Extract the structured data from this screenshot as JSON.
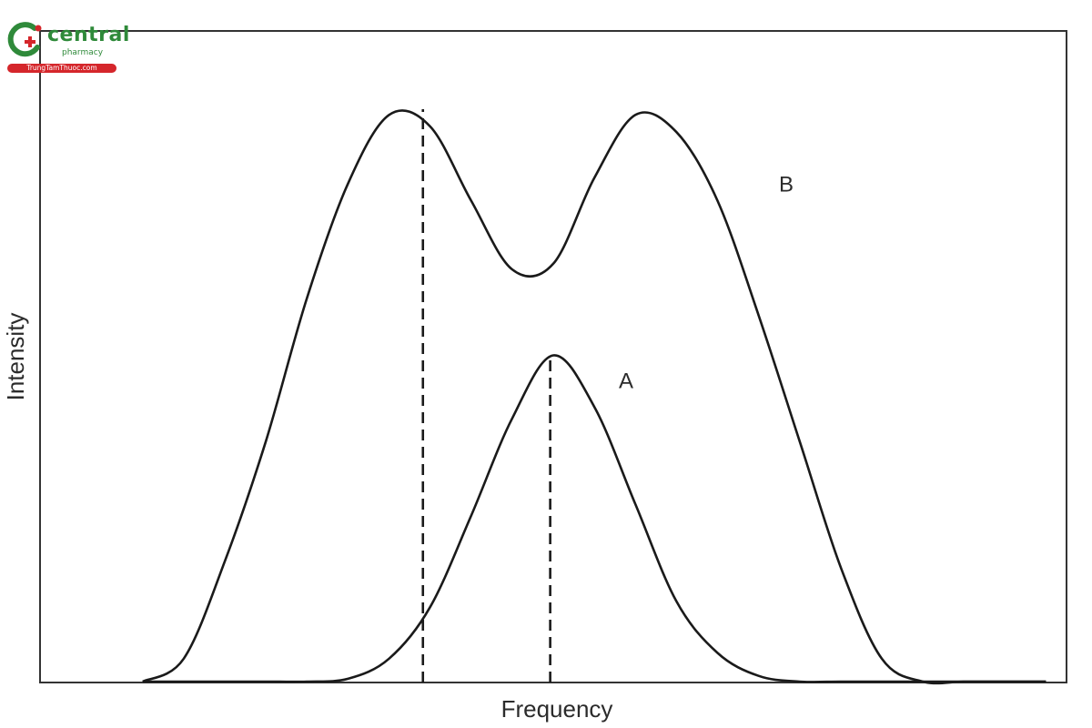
{
  "watermark": {
    "brand": "central",
    "sub": "pharmacy",
    "site": "TrungTamThuoc.com",
    "colors": {
      "green": "#2f8a3a",
      "red": "#d5262b"
    }
  },
  "chart_data": {
    "type": "line",
    "xlabel": "Frequency",
    "ylabel": "Intensity",
    "xlim": [
      0,
      100
    ],
    "ylim": [
      0,
      100
    ],
    "grid": false,
    "legend": "none",
    "axis_ticks": false,
    "x": [
      10,
      14,
      18,
      22,
      26,
      30,
      34,
      38,
      42,
      46,
      50,
      54,
      58,
      62,
      66,
      70,
      74,
      78,
      82,
      86,
      90,
      94,
      98
    ],
    "series": [
      {
        "name": "A",
        "values": [
          0,
          0,
          0,
          0,
          0,
          0.5,
          4,
          13,
          29,
          46,
          57,
          48,
          31,
          14,
          5,
          1,
          0,
          0,
          0,
          0,
          0,
          0,
          0
        ]
      },
      {
        "name": "B",
        "values": [
          0,
          4,
          21,
          42,
          67,
          87,
          99,
          97,
          84,
          72,
          73,
          88,
          99,
          96,
          84,
          64,
          42,
          20,
          4,
          0,
          0,
          0,
          0
        ]
      }
    ],
    "reference_lines": [
      {
        "type": "vertical",
        "x": 37.3,
        "style": "dashed"
      },
      {
        "type": "vertical",
        "x": 49.7,
        "style": "dashed"
      }
    ],
    "colors": {
      "line": "#1a1a1a",
      "frame": "#333333"
    }
  }
}
